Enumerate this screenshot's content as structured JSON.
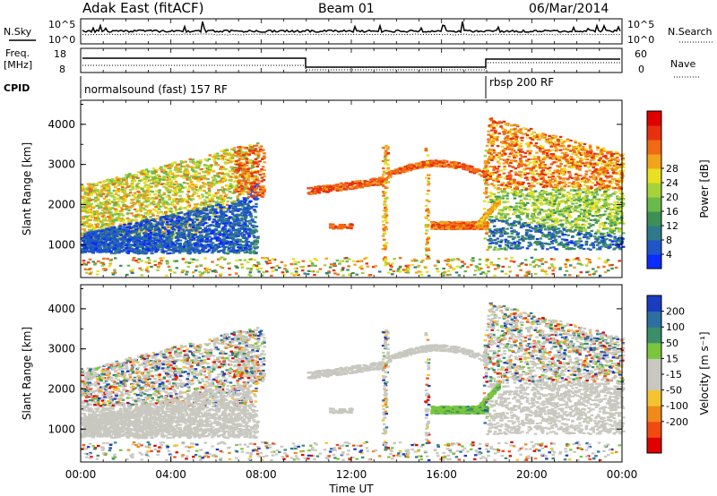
{
  "header": {
    "station": "Adak East (fitACF)",
    "beam": "Beam 01",
    "date": "06/Mar/2014"
  },
  "top_panel": {
    "left_label": "N.Sky",
    "right_label": "N.Search",
    "left_ticks": [
      "10^5",
      "10^0"
    ],
    "right_ticks": [
      "10^5",
      "10^0"
    ]
  },
  "freq_panel": {
    "left_label_line1": "Freq.",
    "left_label_line2": "[MHz]",
    "left_ticks": [
      "18",
      "8"
    ],
    "right_label": "Nave",
    "right_ticks": [
      "60",
      "0"
    ]
  },
  "cpid_panel": {
    "label": "CPID",
    "mode1": "normalsound (fast) 157 RF",
    "mode2": "rbsp 200 RF"
  },
  "chart_data": [
    {
      "type": "heatmap",
      "name": "power",
      "ylabel": "Slant Range [km]",
      "yticks": [
        "1000",
        "2000",
        "3000",
        "4000"
      ],
      "colorbar_label": "Power [dB]",
      "colorbar_ticks": [
        "4",
        "8",
        "12",
        "16",
        "20",
        "24",
        "28"
      ],
      "colorbar_colors": [
        "#0b2bff",
        "#1f55c8",
        "#2f7a8a",
        "#3e8f56",
        "#6bb84c",
        "#a6d23a",
        "#e8e020",
        "#f2a31c",
        "#f06a14",
        "#e83010",
        "#e00000"
      ]
    },
    {
      "type": "heatmap",
      "name": "velocity",
      "ylabel": "Slant Range [km]",
      "yticks": [
        "1000",
        "2000",
        "3000",
        "4000"
      ],
      "colorbar_label": "Velocity [m s⁻¹]",
      "colorbar_ticks": [
        "200",
        "100",
        "50",
        "15",
        "-15",
        "-50",
        "-100",
        "-200"
      ],
      "colorbar_colors": [
        "#1a3cbf",
        "#2c6fa0",
        "#3b8e6a",
        "#7ac63c",
        "#c8c8c0",
        "#c8c8c0",
        "#f5c330",
        "#f08a1a",
        "#f04a10",
        "#e00000"
      ],
      "xlabel": "Time UT",
      "xticks": [
        "00:00",
        "04:00",
        "08:00",
        "12:00",
        "16:00",
        "20:00",
        "00:00"
      ]
    }
  ]
}
